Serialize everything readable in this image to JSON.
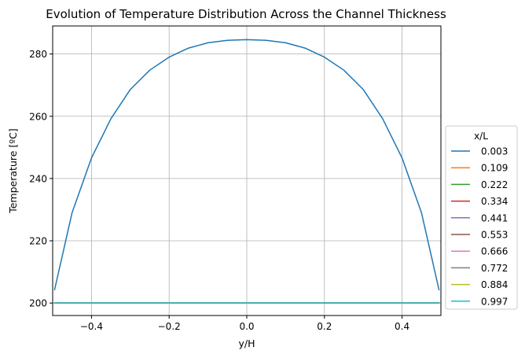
{
  "chart_data": {
    "type": "line",
    "title": "Evolution of Temperature Distribution Across the Channel Thickness",
    "xlabel": "y/H",
    "ylabel": "Temperature [ºC]",
    "xlim": [
      -0.5,
      0.5
    ],
    "ylim": [
      196,
      289
    ],
    "xticks": [
      -0.4,
      -0.2,
      0.0,
      0.2,
      0.4
    ],
    "xtick_labels": [
      "−0.4",
      "−0.2",
      "0.0",
      "0.2",
      "0.4"
    ],
    "yticks": [
      200,
      220,
      240,
      260,
      280
    ],
    "ytick_labels": [
      "200",
      "220",
      "240",
      "260",
      "280"
    ],
    "grid": true,
    "legend": {
      "title": "x/L",
      "placement": "center-right outside"
    },
    "x": [
      -0.495,
      -0.45,
      -0.4,
      -0.35,
      -0.3,
      -0.25,
      -0.2,
      -0.15,
      -0.1,
      -0.05,
      0.0,
      0.05,
      0.1,
      0.15,
      0.2,
      0.25,
      0.3,
      0.35,
      0.4,
      0.45,
      0.495
    ],
    "series": [
      {
        "name": "0.003",
        "color": "#1f77b4",
        "values": [
          204.3,
          229.0,
          246.6,
          259.2,
          268.6,
          274.8,
          279.0,
          281.9,
          283.6,
          284.4,
          284.6,
          284.4,
          283.6,
          281.9,
          279.0,
          274.8,
          268.6,
          259.2,
          246.6,
          229.0,
          204.3
        ]
      },
      {
        "name": "0.109",
        "color": "#ff7f0e",
        "values": [
          200.0,
          200.0,
          200.0,
          200.0,
          200.0,
          200.0,
          200.0,
          200.0,
          200.0,
          200.0,
          200.0,
          200.0,
          200.0,
          200.0,
          200.0,
          200.0,
          200.0,
          200.0,
          200.0,
          200.0,
          200.0
        ]
      },
      {
        "name": "0.222",
        "color": "#2ca02c",
        "values": [
          200.0,
          200.0,
          200.0,
          200.0,
          200.0,
          200.0,
          200.0,
          200.0,
          200.0,
          200.0,
          200.0,
          200.0,
          200.0,
          200.0,
          200.0,
          200.0,
          200.0,
          200.0,
          200.0,
          200.0,
          200.0
        ]
      },
      {
        "name": "0.334",
        "color": "#d62728",
        "values": [
          200.0,
          200.0,
          200.0,
          200.0,
          200.0,
          200.0,
          200.0,
          200.0,
          200.0,
          200.0,
          200.0,
          200.0,
          200.0,
          200.0,
          200.0,
          200.0,
          200.0,
          200.0,
          200.0,
          200.0,
          200.0
        ]
      },
      {
        "name": "0.441",
        "color": "#9467bd",
        "values": [
          200.0,
          200.0,
          200.0,
          200.0,
          200.0,
          200.0,
          200.0,
          200.0,
          200.0,
          200.0,
          200.0,
          200.0,
          200.0,
          200.0,
          200.0,
          200.0,
          200.0,
          200.0,
          200.0,
          200.0,
          200.0
        ]
      },
      {
        "name": "0.553",
        "color": "#8c564b",
        "values": [
          200.0,
          200.0,
          200.0,
          200.0,
          200.0,
          200.0,
          200.0,
          200.0,
          200.0,
          200.0,
          200.0,
          200.0,
          200.0,
          200.0,
          200.0,
          200.0,
          200.0,
          200.0,
          200.0,
          200.0,
          200.0
        ]
      },
      {
        "name": "0.666",
        "color": "#e377c2",
        "values": [
          200.0,
          200.0,
          200.0,
          200.0,
          200.0,
          200.0,
          200.0,
          200.0,
          200.0,
          200.0,
          200.0,
          200.0,
          200.0,
          200.0,
          200.0,
          200.0,
          200.0,
          200.0,
          200.0,
          200.0,
          200.0
        ]
      },
      {
        "name": "0.772",
        "color": "#7f7f7f",
        "values": [
          200.0,
          200.0,
          200.0,
          200.0,
          200.0,
          200.0,
          200.0,
          200.0,
          200.0,
          200.0,
          200.0,
          200.0,
          200.0,
          200.0,
          200.0,
          200.0,
          200.0,
          200.0,
          200.0,
          200.0,
          200.0
        ]
      },
      {
        "name": "0.884",
        "color": "#bcbd22",
        "values": [
          200.0,
          200.0,
          200.0,
          200.0,
          200.0,
          200.0,
          200.0,
          200.0,
          200.0,
          200.0,
          200.0,
          200.0,
          200.0,
          200.0,
          200.0,
          200.0,
          200.0,
          200.0,
          200.0,
          200.0,
          200.0
        ]
      },
      {
        "name": "0.997",
        "color": "#17becf",
        "values": [
          200.0,
          200.0,
          200.0,
          200.0,
          200.0,
          200.0,
          200.0,
          200.0,
          200.0,
          200.0,
          200.0,
          200.0,
          200.0,
          200.0,
          200.0,
          200.0,
          200.0,
          200.0,
          200.0,
          200.0,
          200.0
        ]
      }
    ]
  }
}
